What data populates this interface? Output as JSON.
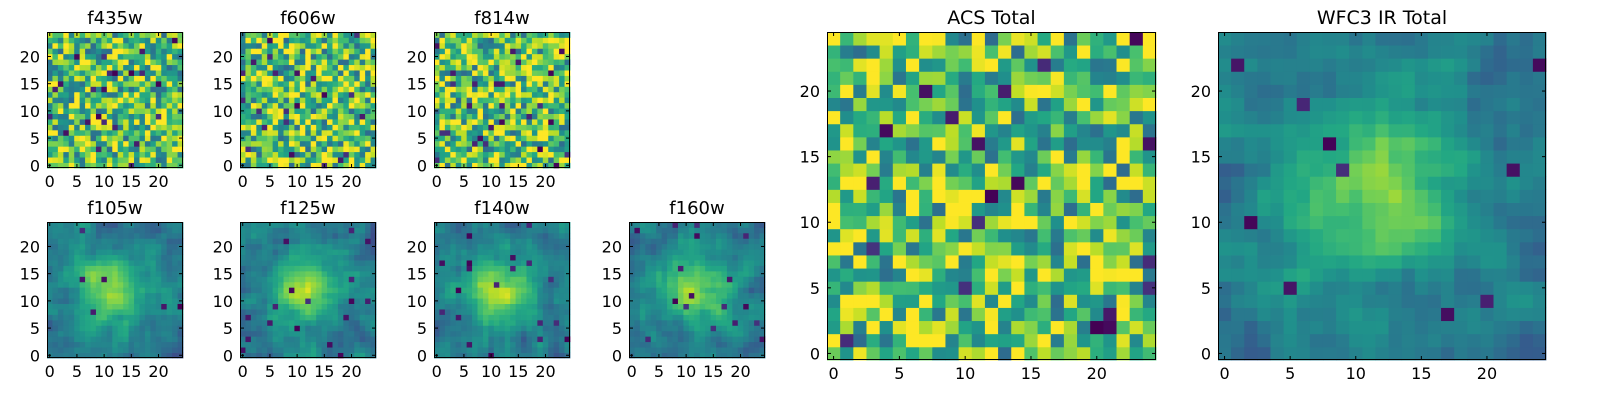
{
  "chart_data": [
    {
      "type": "heatmap",
      "title": "f435w",
      "colormap": "viridis",
      "grid_size": 25,
      "xticks": [
        "0",
        "5",
        "10",
        "15",
        "20"
      ],
      "yticks": [
        "0",
        "5",
        "10",
        "15",
        "20"
      ],
      "xlim": [
        0,
        24
      ],
      "ylim": [
        0,
        24
      ],
      "spatial_structure": "uniform noise",
      "seed": 11
    },
    {
      "type": "heatmap",
      "title": "f606w",
      "colormap": "viridis",
      "grid_size": 25,
      "xticks": [
        "0",
        "5",
        "10",
        "15",
        "20"
      ],
      "yticks": [
        "0",
        "5",
        "10",
        "15",
        "20"
      ],
      "xlim": [
        0,
        24
      ],
      "ylim": [
        0,
        24
      ],
      "spatial_structure": "uniform noise",
      "seed": 23
    },
    {
      "type": "heatmap",
      "title": "f814w",
      "colormap": "viridis",
      "grid_size": 25,
      "xticks": [
        "0",
        "5",
        "10",
        "15",
        "20"
      ],
      "yticks": [
        "0",
        "5",
        "10",
        "15",
        "20"
      ],
      "xlim": [
        0,
        24
      ],
      "ylim": [
        0,
        24
      ],
      "spatial_structure": "uniform noise",
      "seed": 37
    },
    {
      "type": "heatmap",
      "title": "f105w",
      "colormap": "viridis",
      "grid_size": 25,
      "xticks": [
        "0",
        "5",
        "10",
        "15",
        "20"
      ],
      "yticks": [
        "0",
        "5",
        "10",
        "15",
        "20"
      ],
      "xlim": [
        0,
        24
      ],
      "ylim": [
        0,
        24
      ],
      "spatial_structure": "smooth, bright center",
      "seed": 41
    },
    {
      "type": "heatmap",
      "title": "f125w",
      "colormap": "viridis",
      "grid_size": 25,
      "xticks": [
        "0",
        "5",
        "10",
        "15",
        "20"
      ],
      "yticks": [
        "0",
        "5",
        "10",
        "15",
        "20"
      ],
      "xlim": [
        0,
        24
      ],
      "ylim": [
        0,
        24
      ],
      "spatial_structure": "smooth, bright center",
      "seed": 53
    },
    {
      "type": "heatmap",
      "title": "f140w",
      "colormap": "viridis",
      "grid_size": 25,
      "xticks": [
        "0",
        "5",
        "10",
        "15",
        "20"
      ],
      "yticks": [
        "0",
        "5",
        "10",
        "15",
        "20"
      ],
      "xlim": [
        0,
        24
      ],
      "ylim": [
        0,
        24
      ],
      "spatial_structure": "smooth, bright center",
      "seed": 67
    },
    {
      "type": "heatmap",
      "title": "f160w",
      "colormap": "viridis",
      "grid_size": 25,
      "xticks": [
        "0",
        "5",
        "10",
        "15",
        "20"
      ],
      "yticks": [
        "0",
        "5",
        "10",
        "15",
        "20"
      ],
      "xlim": [
        0,
        24
      ],
      "ylim": [
        0,
        24
      ],
      "spatial_structure": "smooth, bright center",
      "seed": 79
    },
    {
      "type": "heatmap",
      "title": "ACS Total",
      "colormap": "viridis",
      "grid_size": 25,
      "xticks": [
        "0",
        "5",
        "10",
        "15",
        "20"
      ],
      "yticks": [
        "0",
        "5",
        "10",
        "15",
        "20"
      ],
      "xlim": [
        0,
        24
      ],
      "ylim": [
        0,
        24
      ],
      "spatial_structure": "uniform noise",
      "seed": 97
    },
    {
      "type": "heatmap",
      "title": "WFC3 IR Total",
      "colormap": "viridis",
      "grid_size": 25,
      "xticks": [
        "0",
        "5",
        "10",
        "15",
        "20"
      ],
      "yticks": [
        "0",
        "5",
        "10",
        "15",
        "20"
      ],
      "xlim": [
        0,
        24
      ],
      "ylim": [
        0,
        24
      ],
      "spatial_structure": "smooth, bright center",
      "seed": 131
    }
  ],
  "colors": {
    "viridis_low": "#440154",
    "viridis_mid": "#21918c",
    "viridis_high": "#fde725"
  }
}
